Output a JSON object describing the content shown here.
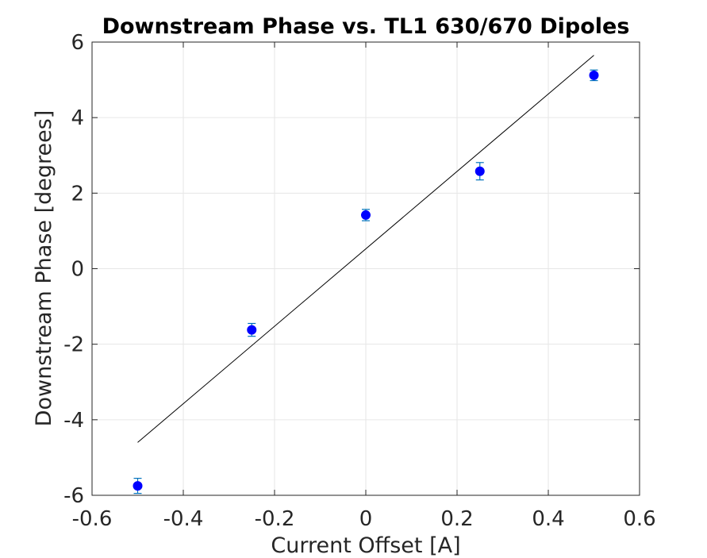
{
  "chart_data": {
    "type": "scatter",
    "title": "Downstream Phase vs. TL1 630/670 Dipoles",
    "xlabel": "Current Offset [A]",
    "ylabel": "Downstream Phase [degrees]",
    "xlim": [
      -0.6,
      0.6
    ],
    "ylim": [
      -6,
      6
    ],
    "xticks": [
      -0.6,
      -0.4,
      -0.2,
      0,
      0.2,
      0.4,
      0.6
    ],
    "yticks": [
      -6,
      -4,
      -2,
      0,
      2,
      4,
      6
    ],
    "xtick_labels": [
      "-0.6",
      "-0.4",
      "-0.2",
      "0",
      "0.2",
      "0.4",
      "0.6"
    ],
    "ytick_labels": [
      "-6",
      "-4",
      "-2",
      "0",
      "2",
      "4",
      "6"
    ],
    "grid": true,
    "points": [
      {
        "x": -0.5,
        "y": -5.75,
        "err": 0.2
      },
      {
        "x": -0.25,
        "y": -1.62,
        "err": 0.17
      },
      {
        "x": 0.0,
        "y": 1.42,
        "err": 0.15
      },
      {
        "x": 0.25,
        "y": 2.58,
        "err": 0.23
      },
      {
        "x": 0.5,
        "y": 5.12,
        "err": 0.14
      }
    ],
    "fit_line": {
      "x": [
        -0.5,
        0.5
      ],
      "y": [
        -4.6,
        5.65
      ]
    },
    "colors": {
      "points": "#0000ff",
      "errorbars": "#0072bd",
      "fit": "#000000",
      "grid": "#e6e6e6",
      "axis": "#262626"
    }
  }
}
